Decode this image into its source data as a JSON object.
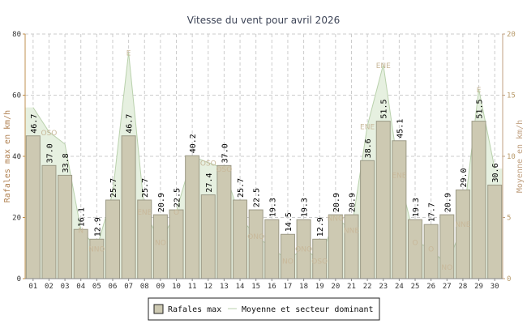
{
  "chart_data": {
    "type": "bar",
    "title": "Vitesse du vent pour avril 2026",
    "ylabel_left": "Rafales max en km/h",
    "ylabel_right": "Moyenne en km/h",
    "ylim_left": [
      0,
      80
    ],
    "ylim_right": [
      0,
      20
    ],
    "yticks_left": [
      "0",
      "20",
      "40",
      "60",
      "80"
    ],
    "yticks_right": [
      "0",
      "5",
      "10",
      "15",
      "20"
    ],
    "grid": true,
    "legend_position": "bottom-center",
    "colors": {
      "bar_fill": "#cdc9b2",
      "bar_stroke": "#9c9a86",
      "area_fill": "#e6f0e0",
      "area_stroke": "#b9d1ac",
      "axis_left": "#c09050",
      "axis_right": "#c0a080",
      "grid": "#cccccc"
    },
    "categories": [
      "01",
      "02",
      "03",
      "04",
      "05",
      "06",
      "07",
      "08",
      "09",
      "10",
      "11",
      "12",
      "13",
      "14",
      "15",
      "16",
      "17",
      "18",
      "19",
      "20",
      "21",
      "22",
      "23",
      "24",
      "25",
      "26",
      "27",
      "28",
      "29",
      "30"
    ],
    "series": [
      {
        "name": "Rafales max",
        "values": [
          46.7,
          37.0,
          33.8,
          16.1,
          12.9,
          25.7,
          46.7,
          25.7,
          20.9,
          22.5,
          40.2,
          27.4,
          37.0,
          25.7,
          22.5,
          19.3,
          14.5,
          19.3,
          12.9,
          20.9,
          20.9,
          38.6,
          51.5,
          45.1,
          19.3,
          17.7,
          20.9,
          29.0,
          51.5,
          30.6
        ],
        "labels": [
          "46.7",
          "37.0",
          "33.8",
          "16.1",
          "12.9",
          "25.7",
          "46.7",
          "25.7",
          "20.9",
          "22.5",
          "40.2",
          "27.4",
          "37.0",
          "25.7",
          "22.5",
          "19.3",
          "14.5",
          "19.3",
          "12.9",
          "20.9",
          "20.9",
          "38.6",
          "51.5",
          "45.1",
          "19.3",
          "17.7",
          "20.9",
          "29.0",
          "51.5",
          "30.6"
        ]
      },
      {
        "name": "Moyenne et secteur dominant",
        "values": [
          14.0,
          12.0,
          11.0,
          4.0,
          2.5,
          7.0,
          18.5,
          5.5,
          3.0,
          5.5,
          10.0,
          9.5,
          9.0,
          5.0,
          3.5,
          2.5,
          1.5,
          2.5,
          1.5,
          5.0,
          4.0,
          12.5,
          17.5,
          8.5,
          3.0,
          2.5,
          1.0,
          4.5,
          15.5,
          9.0
        ],
        "sectors": [
          "",
          "OSO",
          "",
          "N",
          "NNO",
          "",
          "E",
          "ENE",
          "NO",
          "O",
          "",
          "OSO",
          "OSO",
          "",
          "ONO",
          "",
          "NO",
          "ONO",
          "OSO",
          "NNO",
          "NNE",
          "ENE",
          "ENE",
          "ENE",
          "O",
          "O",
          "NO",
          "NNE",
          "E",
          ""
        ]
      }
    ]
  }
}
